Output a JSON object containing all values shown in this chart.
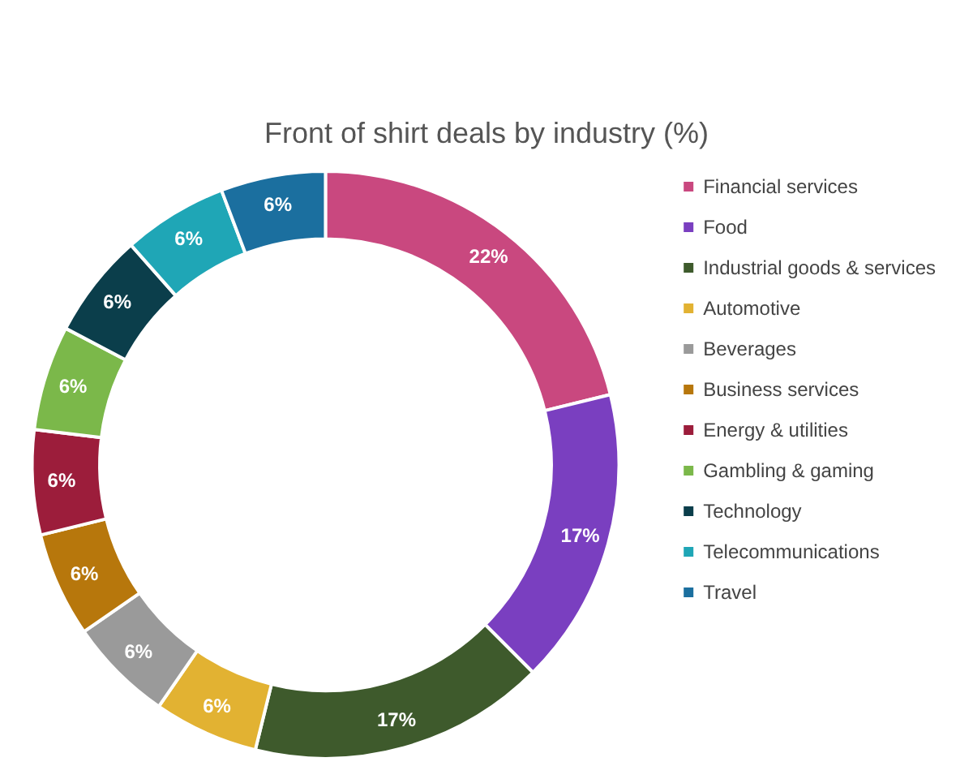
{
  "chart_data": {
    "type": "donut",
    "title": "Front of shirt deals by industry (%)",
    "categories": [
      "Financial services",
      "Food",
      "Industrial goods & services",
      "Automotive",
      "Beverages",
      "Business services",
      "Energy & utilities",
      "Gambling & gaming",
      "Technology",
      "Telecommunications",
      "Travel"
    ],
    "values": [
      22,
      17,
      17,
      6,
      6,
      6,
      6,
      6,
      6,
      6,
      6
    ],
    "value_labels": [
      "22%",
      "17%",
      "17%",
      "6%",
      "6%",
      "6%",
      "6%",
      "6%",
      "6%",
      "6%",
      "6%"
    ],
    "colors": [
      "#c9487f",
      "#7a3fc0",
      "#3e5a2c",
      "#e2b232",
      "#9a9a9a",
      "#b7770c",
      "#9c1d3b",
      "#7bb84a",
      "#0b3e4b",
      "#1fa6b6",
      "#1b6f9f"
    ],
    "legend": "right"
  }
}
